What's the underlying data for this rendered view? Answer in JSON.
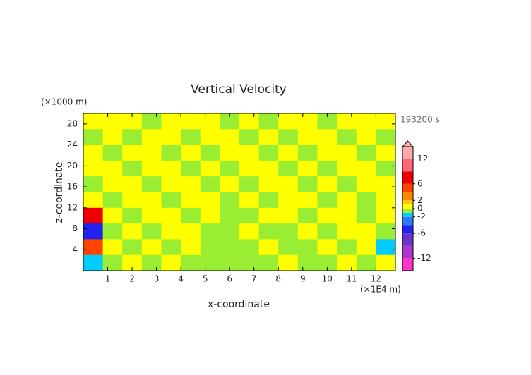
{
  "chart_data": {
    "type": "contour",
    "title": "Vertical Velocity",
    "x_label": "x-coordinate",
    "y_label": "z-coordinate",
    "x_unit": "(×1E4 m)",
    "y_unit": "(×1000 m)",
    "time_label": "193200 s",
    "xlim": [
      0,
      12.8
    ],
    "ylim": [
      0,
      30
    ],
    "xticks": [
      1,
      2,
      3,
      4,
      5,
      6,
      7,
      8,
      9,
      10,
      11,
      12
    ],
    "yticks": [
      4,
      8,
      12,
      16,
      20,
      24,
      28
    ],
    "levels": [
      -15,
      -12,
      -9,
      -6,
      -4,
      -2,
      -1,
      0,
      1,
      2,
      4,
      6,
      9,
      12,
      15
    ],
    "colors": [
      "#ff33cc",
      "#b033cc",
      "#6a33cc",
      "#2222ee",
      "#3377ff",
      "#00ccff",
      "#99ee33",
      "#ffff00",
      "#ffcc00",
      "#ff8800",
      "#ff4400",
      "#ee0000",
      "#ff6677",
      "#ffaaaa"
    ],
    "colorbar_ticks": [
      -12,
      -6,
      -2,
      0,
      2,
      6,
      12
    ],
    "z": [
      [
        0.5,
        0.5,
        0.5,
        -0.5,
        0.5,
        0.5,
        0.5,
        -0.5,
        0.5,
        -0.5,
        0.5,
        0.5,
        -0.5,
        0.5,
        0.5,
        0.5
      ],
      [
        -0.5,
        0.5,
        -0.5,
        0.5,
        0.5,
        -0.5,
        0.5,
        0.5,
        -0.5,
        0.5,
        -0.5,
        0.5,
        0.5,
        -0.5,
        0.5,
        -0.5
      ],
      [
        0.5,
        -0.5,
        0.5,
        0.5,
        -0.5,
        0.5,
        -0.5,
        0.5,
        0.5,
        -0.5,
        0.5,
        -0.5,
        0.5,
        0.5,
        -0.5,
        0.5
      ],
      [
        0.5,
        0.5,
        -0.5,
        0.5,
        0.5,
        -0.5,
        0.5,
        -0.5,
        0.5,
        0.5,
        -0.5,
        0.5,
        -0.5,
        0.5,
        0.5,
        -0.5
      ],
      [
        -0.5,
        0.5,
        0.5,
        -0.5,
        0.5,
        0.5,
        -0.5,
        0.5,
        -0.5,
        0.5,
        0.5,
        -0.5,
        0.5,
        -0.5,
        0.5,
        0.5
      ],
      [
        0.5,
        -0.5,
        0.5,
        0.5,
        -0.5,
        0.5,
        0.5,
        -0.5,
        0.5,
        -0.5,
        0.5,
        0.5,
        -0.5,
        0.5,
        -0.5,
        0.5
      ],
      [
        8,
        0.5,
        -0.5,
        0.5,
        0.5,
        -0.5,
        0.5,
        -0.5,
        -0.5,
        0.5,
        0.5,
        -0.5,
        0.5,
        0.5,
        -0.5,
        0.5
      ],
      [
        -5,
        -0.5,
        0.5,
        -0.5,
        0.5,
        0.5,
        -0.5,
        -0.5,
        0.5,
        -0.5,
        -0.5,
        0.5,
        -0.5,
        0.5,
        0.5,
        -0.5
      ],
      [
        4,
        0.5,
        -0.5,
        0.5,
        -0.5,
        0.5,
        -0.5,
        -0.5,
        -0.5,
        0.5,
        -0.5,
        -0.5,
        0.5,
        -0.5,
        0.5,
        -1.5
      ],
      [
        -2,
        -0.5,
        0.5,
        -0.5,
        0.5,
        -0.5,
        -0.5,
        -0.5,
        -0.5,
        -0.5,
        0.5,
        -0.5,
        -0.5,
        0.5,
        -0.5,
        0.5
      ]
    ]
  }
}
